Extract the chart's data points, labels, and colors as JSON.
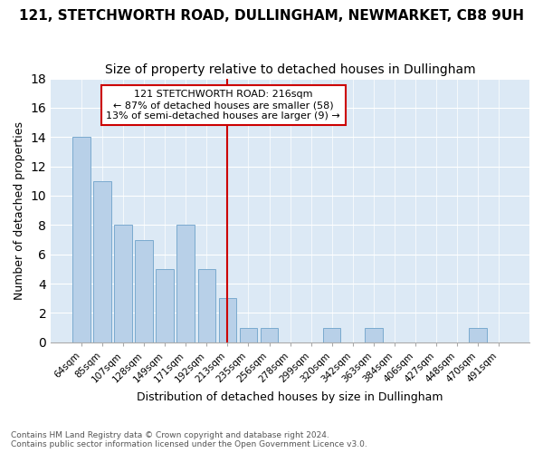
{
  "title": "121, STETCHWORTH ROAD, DULLINGHAM, NEWMARKET, CB8 9UH",
  "subtitle": "Size of property relative to detached houses in Dullingham",
  "xlabel": "Distribution of detached houses by size in Dullingham",
  "ylabel": "Number of detached properties",
  "footnote1": "Contains HM Land Registry data © Crown copyright and database right 2024.",
  "footnote2": "Contains public sector information licensed under the Open Government Licence v3.0.",
  "categories": [
    "64sqm",
    "85sqm",
    "107sqm",
    "128sqm",
    "149sqm",
    "171sqm",
    "192sqm",
    "213sqm",
    "235sqm",
    "256sqm",
    "278sqm",
    "299sqm",
    "320sqm",
    "342sqm",
    "363sqm",
    "384sqm",
    "406sqm",
    "427sqm",
    "448sqm",
    "470sqm",
    "491sqm"
  ],
  "values": [
    14,
    11,
    8,
    7,
    5,
    8,
    5,
    3,
    1,
    1,
    0,
    0,
    1,
    0,
    1,
    0,
    0,
    0,
    0,
    1,
    0
  ],
  "highlight_index": 7,
  "bar_color": "#b8d0e8",
  "bar_edge_color": "#7aaacf",
  "highlight_line_color": "#cc0000",
  "annotation_line1": "121 STETCHWORTH ROAD: 216sqm",
  "annotation_line2": "← 87% of detached houses are smaller (58)",
  "annotation_line3": "13% of semi-detached houses are larger (9) →",
  "annotation_box_color": "#ffffff",
  "annotation_box_edge": "#cc0000",
  "ylim": [
    0,
    18
  ],
  "yticks": [
    0,
    2,
    4,
    6,
    8,
    10,
    12,
    14,
    16,
    18
  ],
  "background_color": "#dce9f5",
  "title_fontsize": 11,
  "subtitle_fontsize": 10,
  "grid_color": "#ffffff"
}
